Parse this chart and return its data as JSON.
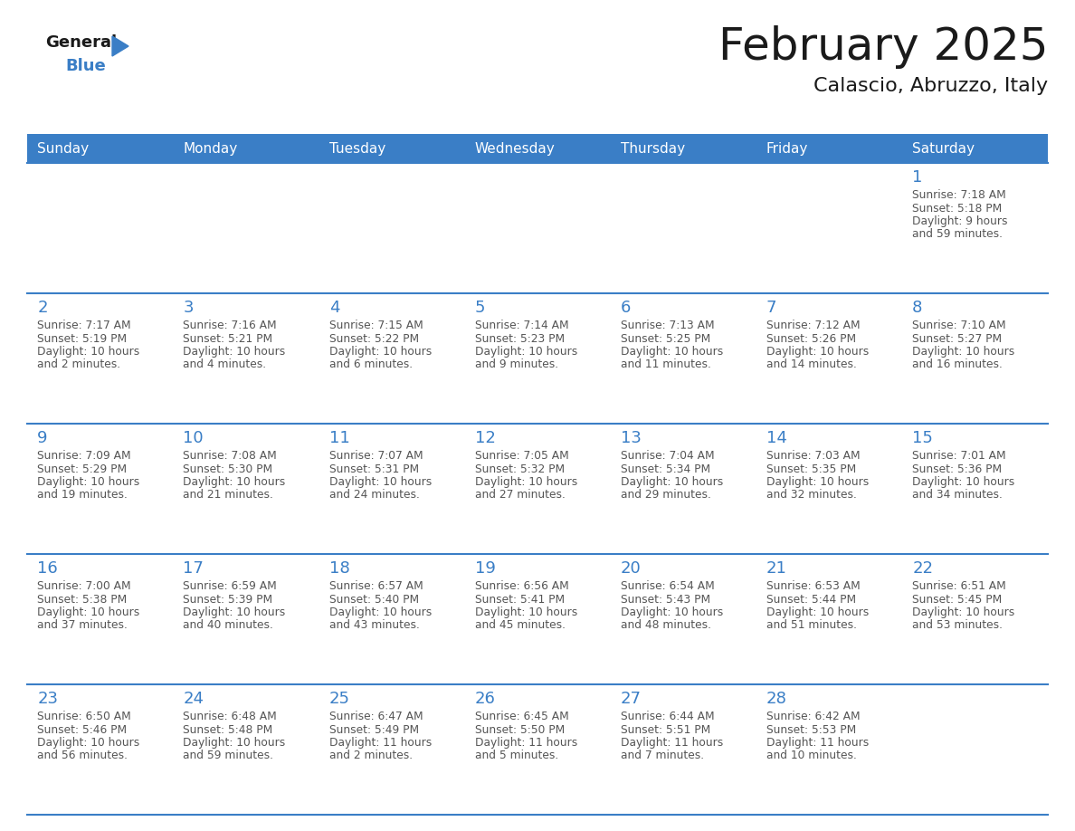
{
  "title": "February 2025",
  "subtitle": "Calascio, Abruzzo, Italy",
  "header_bg_color": "#3A7EC6",
  "header_text_color": "#FFFFFF",
  "border_color": "#3A7EC6",
  "day_number_color": "#3A7EC6",
  "text_color": "#555555",
  "days_of_week": [
    "Sunday",
    "Monday",
    "Tuesday",
    "Wednesday",
    "Thursday",
    "Friday",
    "Saturday"
  ],
  "calendar_data": [
    [
      null,
      null,
      null,
      null,
      null,
      null,
      {
        "day": 1,
        "sunrise": "7:18 AM",
        "sunset": "5:18 PM",
        "daylight": "9 hours and 59 minutes."
      }
    ],
    [
      {
        "day": 2,
        "sunrise": "7:17 AM",
        "sunset": "5:19 PM",
        "daylight": "10 hours and 2 minutes."
      },
      {
        "day": 3,
        "sunrise": "7:16 AM",
        "sunset": "5:21 PM",
        "daylight": "10 hours and 4 minutes."
      },
      {
        "day": 4,
        "sunrise": "7:15 AM",
        "sunset": "5:22 PM",
        "daylight": "10 hours and 6 minutes."
      },
      {
        "day": 5,
        "sunrise": "7:14 AM",
        "sunset": "5:23 PM",
        "daylight": "10 hours and 9 minutes."
      },
      {
        "day": 6,
        "sunrise": "7:13 AM",
        "sunset": "5:25 PM",
        "daylight": "10 hours and 11 minutes."
      },
      {
        "day": 7,
        "sunrise": "7:12 AM",
        "sunset": "5:26 PM",
        "daylight": "10 hours and 14 minutes."
      },
      {
        "day": 8,
        "sunrise": "7:10 AM",
        "sunset": "5:27 PM",
        "daylight": "10 hours and 16 minutes."
      }
    ],
    [
      {
        "day": 9,
        "sunrise": "7:09 AM",
        "sunset": "5:29 PM",
        "daylight": "10 hours and 19 minutes."
      },
      {
        "day": 10,
        "sunrise": "7:08 AM",
        "sunset": "5:30 PM",
        "daylight": "10 hours and 21 minutes."
      },
      {
        "day": 11,
        "sunrise": "7:07 AM",
        "sunset": "5:31 PM",
        "daylight": "10 hours and 24 minutes."
      },
      {
        "day": 12,
        "sunrise": "7:05 AM",
        "sunset": "5:32 PM",
        "daylight": "10 hours and 27 minutes."
      },
      {
        "day": 13,
        "sunrise": "7:04 AM",
        "sunset": "5:34 PM",
        "daylight": "10 hours and 29 minutes."
      },
      {
        "day": 14,
        "sunrise": "7:03 AM",
        "sunset": "5:35 PM",
        "daylight": "10 hours and 32 minutes."
      },
      {
        "day": 15,
        "sunrise": "7:01 AM",
        "sunset": "5:36 PM",
        "daylight": "10 hours and 34 minutes."
      }
    ],
    [
      {
        "day": 16,
        "sunrise": "7:00 AM",
        "sunset": "5:38 PM",
        "daylight": "10 hours and 37 minutes."
      },
      {
        "day": 17,
        "sunrise": "6:59 AM",
        "sunset": "5:39 PM",
        "daylight": "10 hours and 40 minutes."
      },
      {
        "day": 18,
        "sunrise": "6:57 AM",
        "sunset": "5:40 PM",
        "daylight": "10 hours and 43 minutes."
      },
      {
        "day": 19,
        "sunrise": "6:56 AM",
        "sunset": "5:41 PM",
        "daylight": "10 hours and 45 minutes."
      },
      {
        "day": 20,
        "sunrise": "6:54 AM",
        "sunset": "5:43 PM",
        "daylight": "10 hours and 48 minutes."
      },
      {
        "day": 21,
        "sunrise": "6:53 AM",
        "sunset": "5:44 PM",
        "daylight": "10 hours and 51 minutes."
      },
      {
        "day": 22,
        "sunrise": "6:51 AM",
        "sunset": "5:45 PM",
        "daylight": "10 hours and 53 minutes."
      }
    ],
    [
      {
        "day": 23,
        "sunrise": "6:50 AM",
        "sunset": "5:46 PM",
        "daylight": "10 hours and 56 minutes."
      },
      {
        "day": 24,
        "sunrise": "6:48 AM",
        "sunset": "5:48 PM",
        "daylight": "10 hours and 59 minutes."
      },
      {
        "day": 25,
        "sunrise": "6:47 AM",
        "sunset": "5:49 PM",
        "daylight": "11 hours and 2 minutes."
      },
      {
        "day": 26,
        "sunrise": "6:45 AM",
        "sunset": "5:50 PM",
        "daylight": "11 hours and 5 minutes."
      },
      {
        "day": 27,
        "sunrise": "6:44 AM",
        "sunset": "5:51 PM",
        "daylight": "11 hours and 7 minutes."
      },
      {
        "day": 28,
        "sunrise": "6:42 AM",
        "sunset": "5:53 PM",
        "daylight": "11 hours and 10 minutes."
      },
      null
    ]
  ]
}
